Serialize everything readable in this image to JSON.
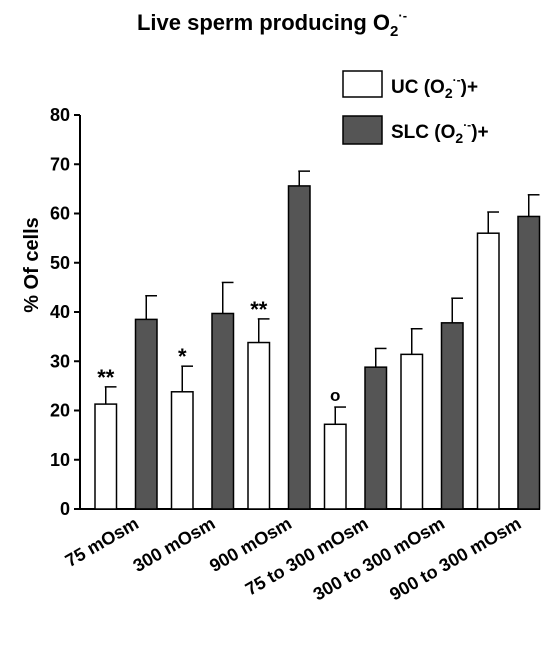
{
  "chart_data": {
    "type": "bar",
    "title_main": "Live sperm producing O",
    "title_sub": "2",
    "title_sup": "·-",
    "ylabel": "% Of cells",
    "ylim": [
      0,
      80
    ],
    "yticks": [
      "0",
      "10",
      "20",
      "30",
      "40",
      "50",
      "60",
      "70",
      "80"
    ],
    "categories": [
      "75 mOsm",
      "300 mOsm",
      "900 mOsm",
      "75 to 300 mOsm",
      "300 to 300 mOsm",
      "900 to 300 mOsm"
    ],
    "series": [
      {
        "legend_main": "UC (O",
        "legend_sub": "2",
        "legend_sup": "·-",
        "legend_tail": ")+",
        "color": "#ffffff",
        "values": [
          21.3,
          23.8,
          33.8,
          17.2,
          31.4,
          56.0
        ],
        "errors": [
          3.5,
          5.2,
          4.8,
          3.5,
          5.2,
          4.3
        ]
      },
      {
        "legend_main": "SLC (O",
        "legend_sub": "2",
        "legend_sup": "·-",
        "legend_tail": ")+",
        "color": "#555555",
        "values": [
          38.5,
          39.7,
          65.6,
          28.8,
          37.8,
          59.4
        ],
        "errors": [
          4.8,
          6.3,
          3.0,
          3.8,
          5.0,
          4.4
        ]
      }
    ],
    "annotations": [
      "**",
      "*",
      "**",
      "o",
      "",
      ""
    ],
    "legend_position": "top-right",
    "grid": false
  }
}
